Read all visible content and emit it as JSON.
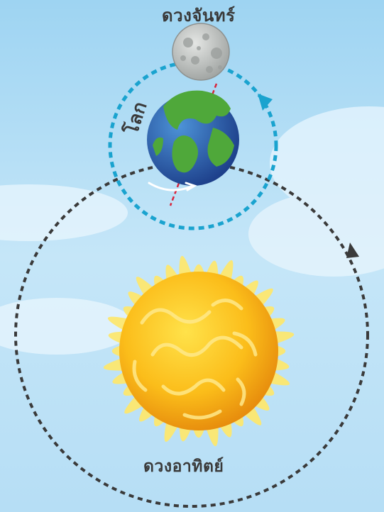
{
  "labels": {
    "moon": "ดวงจันทร์",
    "earth": "โลก",
    "sun": "ดวงอาทิตย์"
  },
  "colors": {
    "sky": "#bfe3f7",
    "earth_orbit": "#3a3a3a",
    "moon_orbit": "#1aa3cf",
    "sun_core": "#f7b014",
    "sun_rays": "#fde870",
    "earth_ocean": "#2d6fb8",
    "earth_land": "#4fa83a",
    "moon_surface": "#c9cbc9"
  },
  "icons": {
    "moon": "moon-icon",
    "earth": "earth-icon",
    "sun": "sun-icon"
  }
}
